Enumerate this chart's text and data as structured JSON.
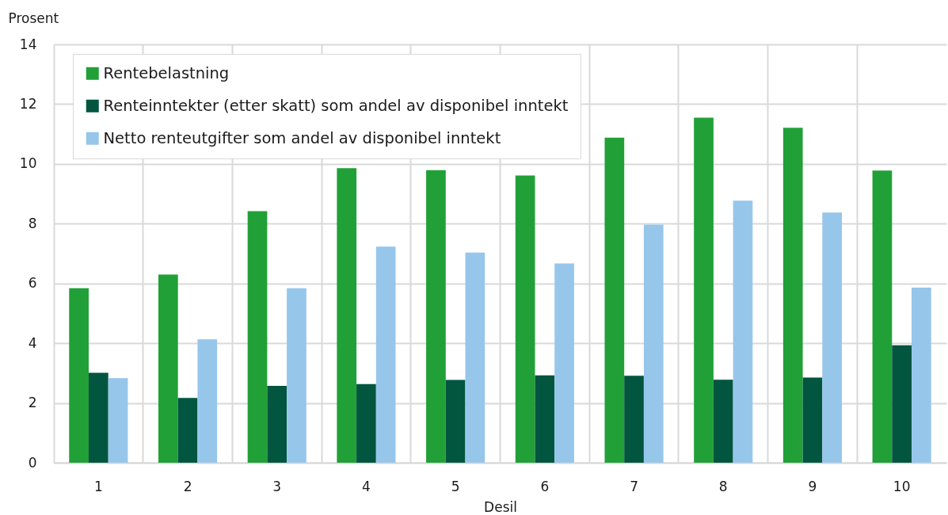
{
  "chart_data": {
    "type": "bar",
    "xlabel": "Desil",
    "ylabel": "Prosent",
    "categories": [
      "1",
      "2",
      "3",
      "4",
      "5",
      "6",
      "7",
      "8",
      "9",
      "10"
    ],
    "series": [
      {
        "name": "Rentebelastning",
        "color": "#21a038",
        "values": [
          5.84,
          6.3,
          8.42,
          9.86,
          9.79,
          9.61,
          10.88,
          11.55,
          11.21,
          9.78
        ]
      },
      {
        "name": "Renteinntekter (etter skatt) som andel av disponibel inntekt",
        "color": "#02553f",
        "values": [
          3.01,
          2.17,
          2.57,
          2.63,
          2.77,
          2.92,
          2.91,
          2.78,
          2.85,
          3.93
        ]
      },
      {
        "name": "Netto renteutgifter som andel av disponibel inntekt",
        "color": "#97c6eb",
        "values": [
          2.83,
          4.13,
          5.84,
          7.23,
          7.03,
          6.67,
          7.97,
          8.77,
          8.37,
          5.86
        ]
      }
    ],
    "ylim": [
      0,
      14
    ],
    "yticks": [
      0,
      2,
      4,
      6,
      8,
      10,
      12,
      14
    ],
    "grid": true,
    "legend": "top left"
  }
}
